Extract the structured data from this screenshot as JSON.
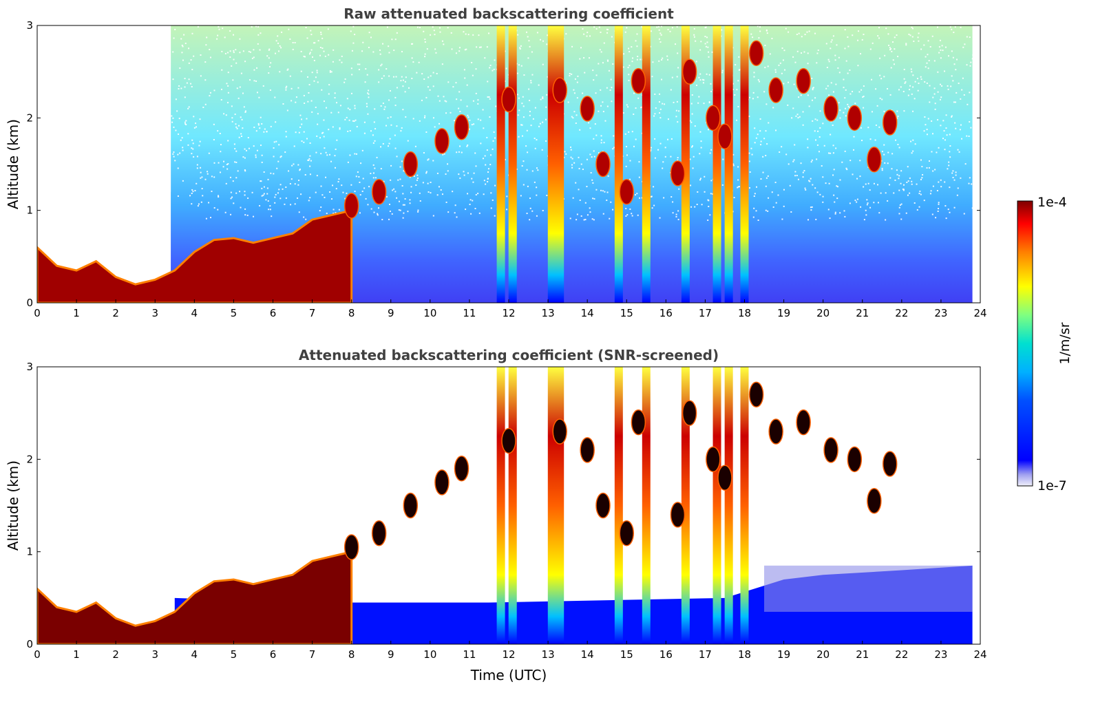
{
  "chart_data": [
    {
      "type": "heatmap",
      "title": "Raw attenuated backscattering coefficient",
      "xlabel": "",
      "ylabel": "Altitude (km)",
      "xlim": [
        0,
        24
      ],
      "ylim": [
        0,
        3
      ],
      "x_ticks": [
        0,
        1,
        2,
        3,
        4,
        5,
        6,
        7,
        8,
        9,
        10,
        11,
        12,
        13,
        14,
        15,
        16,
        17,
        18,
        19,
        20,
        21,
        22,
        23,
        24
      ],
      "y_ticks": [
        0,
        1,
        2,
        3
      ],
      "boundary_layer_top_km": [
        {
          "x": 0.0,
          "y": 0.6
        },
        {
          "x": 0.5,
          "y": 0.4
        },
        {
          "x": 1.0,
          "y": 0.35
        },
        {
          "x": 1.5,
          "y": 0.45
        },
        {
          "x": 2.0,
          "y": 0.28
        },
        {
          "x": 2.5,
          "y": 0.2
        },
        {
          "x": 3.0,
          "y": 0.25
        },
        {
          "x": 3.5,
          "y": 0.35
        },
        {
          "x": 4.0,
          "y": 0.55
        },
        {
          "x": 4.5,
          "y": 0.68
        },
        {
          "x": 5.0,
          "y": 0.7
        },
        {
          "x": 5.5,
          "y": 0.65
        },
        {
          "x": 6.0,
          "y": 0.7
        },
        {
          "x": 6.5,
          "y": 0.75
        },
        {
          "x": 7.0,
          "y": 0.9
        },
        {
          "x": 7.5,
          "y": 0.95
        },
        {
          "x": 8.0,
          "y": 1.0
        }
      ],
      "cloud_columns_hours": [
        11.8,
        12.1,
        13.1,
        13.3,
        14.8,
        15.5,
        16.5,
        17.3,
        17.6,
        18.0
      ],
      "clouds": [
        {
          "x": 8.0,
          "y": 1.05
        },
        {
          "x": 8.7,
          "y": 1.2
        },
        {
          "x": 9.5,
          "y": 1.5
        },
        {
          "x": 10.3,
          "y": 1.75
        },
        {
          "x": 10.8,
          "y": 1.9
        },
        {
          "x": 12.0,
          "y": 2.2
        },
        {
          "x": 13.3,
          "y": 2.3
        },
        {
          "x": 14.0,
          "y": 2.1
        },
        {
          "x": 14.4,
          "y": 1.5
        },
        {
          "x": 15.0,
          "y": 1.2
        },
        {
          "x": 15.3,
          "y": 2.4
        },
        {
          "x": 16.3,
          "y": 1.4
        },
        {
          "x": 16.6,
          "y": 2.5
        },
        {
          "x": 17.2,
          "y": 2.0
        },
        {
          "x": 17.5,
          "y": 1.8
        },
        {
          "x": 18.3,
          "y": 2.7
        },
        {
          "x": 18.8,
          "y": 2.3
        },
        {
          "x": 19.5,
          "y": 2.4
        },
        {
          "x": 20.2,
          "y": 2.1
        },
        {
          "x": 20.8,
          "y": 2.0
        },
        {
          "x": 21.3,
          "y": 1.55
        },
        {
          "x": 21.7,
          "y": 1.95
        }
      ]
    },
    {
      "type": "heatmap",
      "title": "Attenuated backscattering coefficient (SNR-screened)",
      "xlabel": "Time (UTC)",
      "ylabel": "Altitude (km)",
      "xlim": [
        0,
        24
      ],
      "ylim": [
        0,
        3
      ],
      "x_ticks": [
        0,
        1,
        2,
        3,
        4,
        5,
        6,
        7,
        8,
        9,
        10,
        11,
        12,
        13,
        14,
        15,
        16,
        17,
        18,
        19,
        20,
        21,
        22,
        23,
        24
      ],
      "y_ticks": [
        0,
        1,
        2,
        3
      ],
      "boundary_layer_top_km": [
        {
          "x": 0.0,
          "y": 0.6
        },
        {
          "x": 0.5,
          "y": 0.4
        },
        {
          "x": 1.0,
          "y": 0.35
        },
        {
          "x": 1.5,
          "y": 0.45
        },
        {
          "x": 2.0,
          "y": 0.28
        },
        {
          "x": 2.5,
          "y": 0.2
        },
        {
          "x": 3.0,
          "y": 0.25
        },
        {
          "x": 3.5,
          "y": 0.35
        },
        {
          "x": 4.0,
          "y": 0.55
        },
        {
          "x": 4.5,
          "y": 0.68
        },
        {
          "x": 5.0,
          "y": 0.7
        },
        {
          "x": 5.5,
          "y": 0.65
        },
        {
          "x": 6.0,
          "y": 0.7
        },
        {
          "x": 6.5,
          "y": 0.75
        },
        {
          "x": 7.0,
          "y": 0.9
        },
        {
          "x": 7.5,
          "y": 0.95
        },
        {
          "x": 8.0,
          "y": 1.0
        }
      ],
      "screened_aerosol_top_km": [
        {
          "x": 3.5,
          "y": 0.5
        },
        {
          "x": 7.0,
          "y": 0.45
        },
        {
          "x": 11.5,
          "y": 0.45
        },
        {
          "x": 17.5,
          "y": 0.5
        },
        {
          "x": 19.0,
          "y": 0.7
        },
        {
          "x": 20.0,
          "y": 0.75
        },
        {
          "x": 22.0,
          "y": 0.8
        },
        {
          "x": 23.8,
          "y": 0.85
        }
      ],
      "cloud_columns_hours": [
        11.8,
        12.1,
        13.1,
        13.3,
        14.8,
        15.5,
        16.5,
        17.3,
        17.6,
        18.0
      ],
      "clouds": [
        {
          "x": 8.0,
          "y": 1.05
        },
        {
          "x": 8.7,
          "y": 1.2
        },
        {
          "x": 9.5,
          "y": 1.5
        },
        {
          "x": 10.3,
          "y": 1.75
        },
        {
          "x": 10.8,
          "y": 1.9
        },
        {
          "x": 12.0,
          "y": 2.2
        },
        {
          "x": 13.3,
          "y": 2.3
        },
        {
          "x": 14.0,
          "y": 2.1
        },
        {
          "x": 14.4,
          "y": 1.5
        },
        {
          "x": 15.0,
          "y": 1.2
        },
        {
          "x": 15.3,
          "y": 2.4
        },
        {
          "x": 16.3,
          "y": 1.4
        },
        {
          "x": 16.6,
          "y": 2.5
        },
        {
          "x": 17.2,
          "y": 2.0
        },
        {
          "x": 17.5,
          "y": 1.8
        },
        {
          "x": 18.3,
          "y": 2.7
        },
        {
          "x": 18.8,
          "y": 2.3
        },
        {
          "x": 19.5,
          "y": 2.4
        },
        {
          "x": 20.2,
          "y": 2.1
        },
        {
          "x": 20.8,
          "y": 2.0
        },
        {
          "x": 21.3,
          "y": 1.55
        },
        {
          "x": 21.7,
          "y": 1.95
        }
      ]
    }
  ],
  "colorbar": {
    "label": "1/m/sr",
    "max_label": "1e-4",
    "min_label": "1e-7",
    "scale": "log",
    "range": [
      1e-07,
      0.0001
    ],
    "colors": [
      "#e8e8f8",
      "#0000ff",
      "#00a0ff",
      "#00e0e0",
      "#80ff80",
      "#ffff00",
      "#ff8000",
      "#ff0000",
      "#800000"
    ]
  }
}
